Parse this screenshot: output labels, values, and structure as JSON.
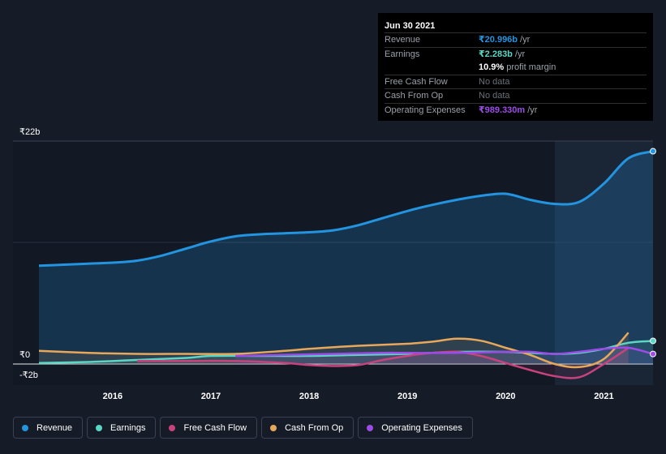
{
  "tooltip": {
    "date": "Jun 30 2021",
    "rows": [
      {
        "label": "Revenue",
        "value": "₹20.996b",
        "unit": "/yr",
        "color": "#2394df"
      },
      {
        "label": "Earnings",
        "value": "₹2.283b",
        "unit": "/yr",
        "color": "#5bd6c4"
      },
      {
        "label": "",
        "value": "10.9%",
        "unit": "profit margin",
        "color": "#ffffff"
      },
      {
        "label": "Free Cash Flow",
        "value": "No data",
        "unit": "",
        "color": "#6b7178"
      },
      {
        "label": "Cash From Op",
        "value": "No data",
        "unit": "",
        "color": "#6b7178"
      },
      {
        "label": "Operating Expenses",
        "value": "₹989.330m",
        "unit": "/yr",
        "color": "#9d4be8"
      }
    ]
  },
  "chart_data": {
    "type": "area",
    "y_axis_labels": [
      "₹22b",
      "₹0",
      "-₹2b"
    ],
    "ylim": [
      -2,
      22
    ],
    "xlim": [
      2015.25,
      2021.5
    ],
    "x_ticks": [
      2016,
      2017,
      2018,
      2019,
      2020,
      2021
    ],
    "x_tick_labels": [
      "2016",
      "2017",
      "2018",
      "2019",
      "2020",
      "2021"
    ],
    "forecast_shade_start": 2020.5,
    "series": [
      {
        "name": "Revenue",
        "color": "#2394df",
        "x": [
          2015.25,
          2015.5,
          2015.75,
          2016.0,
          2016.25,
          2016.5,
          2016.75,
          2017.0,
          2017.25,
          2017.5,
          2017.75,
          2018.0,
          2018.25,
          2018.5,
          2018.75,
          2019.0,
          2019.25,
          2019.5,
          2019.75,
          2020.0,
          2020.25,
          2020.5,
          2020.75,
          2021.0,
          2021.25,
          2021.5
        ],
        "y": [
          9.7,
          9.8,
          9.9,
          10.0,
          10.2,
          10.7,
          11.4,
          12.1,
          12.6,
          12.8,
          12.9,
          13.0,
          13.2,
          13.7,
          14.4,
          15.1,
          15.7,
          16.2,
          16.6,
          16.8,
          16.2,
          15.8,
          16.0,
          17.8,
          20.3,
          20.996
        ]
      },
      {
        "name": "Earnings",
        "color": "#5bd6c4",
        "x": [
          2015.25,
          2015.75,
          2016.25,
          2016.75,
          2017.0,
          2017.5,
          2018.0,
          2018.5,
          2019.0,
          2019.5,
          2020.0,
          2020.5,
          2020.75,
          2021.0,
          2021.25,
          2021.5
        ],
        "y": [
          0.1,
          0.2,
          0.4,
          0.6,
          0.8,
          0.8,
          0.8,
          0.9,
          1.0,
          1.2,
          1.2,
          1.0,
          1.1,
          1.5,
          2.1,
          2.283
        ]
      },
      {
        "name": "Free Cash Flow",
        "color": "#c8437e",
        "x": [
          2016.25,
          2016.75,
          2017.25,
          2017.75,
          2018.0,
          2018.25,
          2018.5,
          2018.75,
          2019.0,
          2019.25,
          2019.5,
          2019.75,
          2020.0,
          2020.25,
          2020.5,
          2020.75,
          2021.0,
          2021.25
        ],
        "y": [
          0.3,
          0.3,
          0.3,
          0.1,
          -0.1,
          -0.2,
          -0.1,
          0.4,
          0.8,
          1.1,
          1.2,
          0.8,
          0.1,
          -0.6,
          -1.2,
          -1.3,
          0.0,
          1.6
        ]
      },
      {
        "name": "Cash From Op",
        "color": "#e8a85c",
        "x": [
          2015.25,
          2015.75,
          2016.25,
          2016.75,
          2017.25,
          2017.75,
          2018.0,
          2018.5,
          2019.0,
          2019.25,
          2019.5,
          2019.75,
          2020.0,
          2020.25,
          2020.5,
          2020.75,
          2021.0,
          2021.25
        ],
        "y": [
          1.3,
          1.1,
          1.0,
          1.0,
          1.0,
          1.3,
          1.5,
          1.8,
          2.0,
          2.2,
          2.5,
          2.3,
          1.6,
          0.9,
          0.0,
          -0.3,
          0.5,
          3.1
        ]
      },
      {
        "name": "Operating Expenses",
        "color": "#9d4be8",
        "x": [
          2017.25,
          2017.75,
          2018.25,
          2018.75,
          2019.0,
          2019.5,
          2020.0,
          2020.25,
          2020.5,
          2020.75,
          2021.0,
          2021.25,
          2021.5
        ],
        "y": [
          0.8,
          0.9,
          1.0,
          1.1,
          1.1,
          1.1,
          1.2,
          1.2,
          1.0,
          1.2,
          1.5,
          1.6,
          0.989
        ]
      }
    ]
  },
  "legend": [
    {
      "label": "Revenue",
      "color": "#2394df"
    },
    {
      "label": "Earnings",
      "color": "#5bd6c4"
    },
    {
      "label": "Free Cash Flow",
      "color": "#c8437e"
    },
    {
      "label": "Cash From Op",
      "color": "#e8a85c"
    },
    {
      "label": "Operating Expenses",
      "color": "#9d4be8"
    }
  ]
}
